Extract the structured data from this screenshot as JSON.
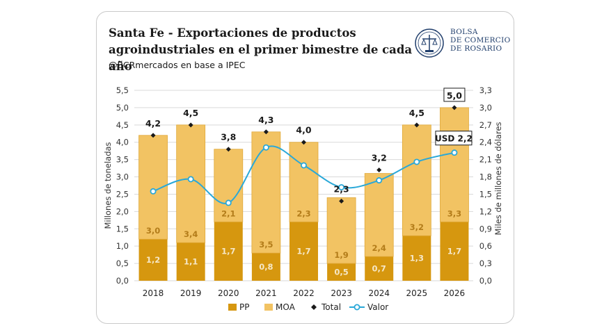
{
  "title": "Santa Fe - Exportaciones de productos agroindustriales en el primer bimestre de cada año",
  "subtitle": "@BCRmercados  en base a IPEC",
  "logo": {
    "line1": "BOLSA",
    "line2": "DE COMERCIO",
    "line3": "DE ROSARIO",
    "icon": "bcr-emblem-icon"
  },
  "colors": {
    "pp": "#d6970f",
    "moa": "#f2c363",
    "total": "#1a1a1a",
    "valor": "#29a8d8",
    "bar_label_pp": "#f6e7c6",
    "bar_label_moa": "#b37c1a"
  },
  "chart_data": {
    "type": "bar",
    "categories": [
      "2018",
      "2019",
      "2020",
      "2021",
      "2022",
      "2023",
      "2024",
      "2025",
      "2026"
    ],
    "series": [
      {
        "name": "PP",
        "type": "bar-stacked",
        "values": [
          1.2,
          1.1,
          1.7,
          0.8,
          1.7,
          0.5,
          0.7,
          1.3,
          1.7
        ],
        "labels": [
          "1,2",
          "1,1",
          "1,7",
          "0,8",
          "1,7",
          "0,5",
          "0,7",
          "1,3",
          "1,7"
        ]
      },
      {
        "name": "MOA",
        "type": "bar-stacked",
        "values": [
          3.0,
          3.4,
          2.1,
          3.5,
          2.3,
          1.9,
          2.4,
          3.2,
          3.3
        ],
        "labels": [
          "3,0",
          "3,4",
          "2,1",
          "3,5",
          "2,3",
          "1,9",
          "2,4",
          "3,2",
          "3,3"
        ]
      },
      {
        "name": "Total",
        "type": "marker",
        "values": [
          4.2,
          4.5,
          3.8,
          4.3,
          4.0,
          2.3,
          3.2,
          4.5,
          5.0
        ],
        "labels": [
          "4,2",
          "4,5",
          "3,8",
          "4,3",
          "4,0",
          "2,3",
          "3,2",
          "4,5",
          "5,0"
        ]
      },
      {
        "name": "Valor",
        "type": "line",
        "axis": "right",
        "values": [
          1.55,
          1.76,
          1.35,
          2.31,
          2.0,
          1.62,
          1.74,
          2.06,
          2.22
        ]
      }
    ],
    "annotation": "USD 2,2",
    "ylabel": "Millones de toneladas",
    "y2label": "Miles de millones de dólares",
    "ylim": [
      0,
      5.5
    ],
    "y2lim": [
      0,
      3.3
    ],
    "yticks": [
      "0,0",
      "0,5",
      "1,0",
      "1,5",
      "2,0",
      "2,5",
      "3,0",
      "3,5",
      "4,0",
      "4,5",
      "5,0",
      "5,5"
    ],
    "y2ticks": [
      "0,0",
      "0,3",
      "0,6",
      "0,9",
      "1,2",
      "1,5",
      "1,8",
      "2,1",
      "2,4",
      "2,7",
      "3,0",
      "3,3"
    ],
    "grid": true,
    "legend_position": "bottom"
  }
}
